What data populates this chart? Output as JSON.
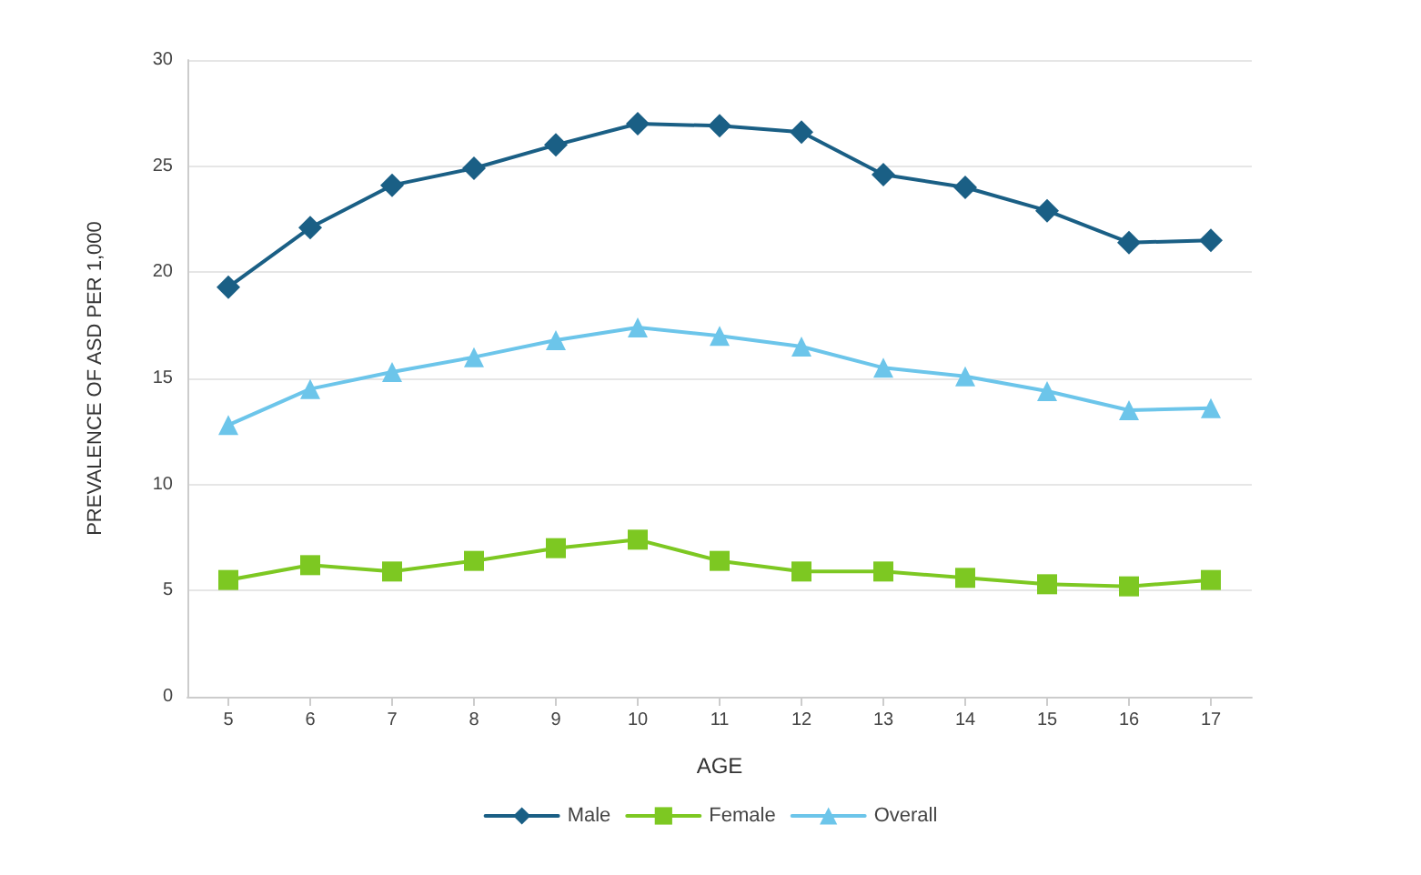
{
  "chart_data": {
    "type": "line",
    "xlabel": "AGE",
    "ylabel": "PREVALENCE OF ASD PER 1,000",
    "categories": [
      "5",
      "6",
      "7",
      "8",
      "9",
      "10",
      "11",
      "12",
      "13",
      "14",
      "15",
      "16",
      "17"
    ],
    "series": [
      {
        "name": "Male",
        "color": "#1a5f85",
        "marker": "diamond",
        "values": [
          19.3,
          22.1,
          24.1,
          24.9,
          26,
          27,
          26.9,
          26.6,
          24.6,
          24,
          22.9,
          21.4,
          21.5
        ]
      },
      {
        "name": "Female",
        "color": "#7dc822",
        "marker": "square",
        "values": [
          5.5,
          6.2,
          5.9,
          6.4,
          7.0,
          7.4,
          6.4,
          5.9,
          5.9,
          5.6,
          5.3,
          5.2,
          5.5
        ]
      },
      {
        "name": "Overall",
        "color": "#6cc5ea",
        "marker": "triangle",
        "values": [
          12.8,
          14.5,
          15.3,
          16,
          16.8,
          17.4,
          17,
          16.5,
          15.5,
          15.1,
          14.4,
          13.5,
          13.6
        ]
      }
    ],
    "ylim": [
      0,
      30
    ],
    "yticks": [
      0,
      5,
      10,
      15,
      20,
      25,
      30
    ],
    "grid": "y",
    "legend": "bottom",
    "line_style": "solid"
  }
}
